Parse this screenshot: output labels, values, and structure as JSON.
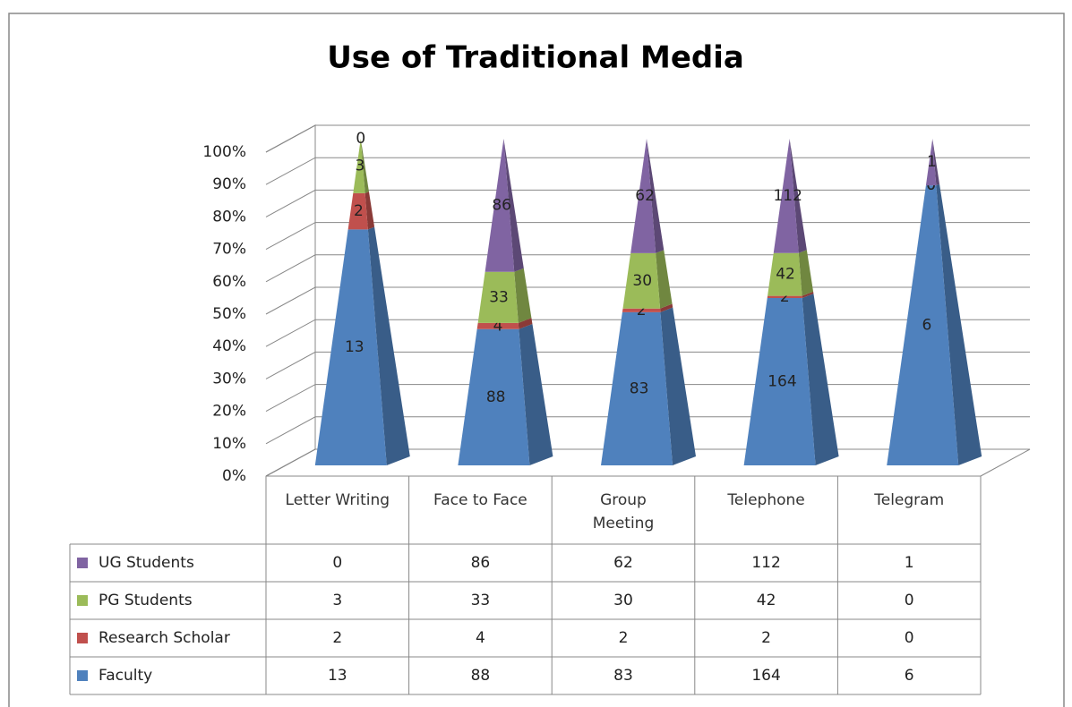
{
  "chart_data": {
    "type": "pyramid100",
    "title": "Use of Traditional Media",
    "categories": [
      "Letter Writing",
      "Face to Face",
      "Group Meeting",
      "Telephone",
      "Telegram"
    ],
    "series": [
      {
        "name": "Faculty",
        "color": "#4f81bd",
        "values": [
          13,
          88,
          83,
          164,
          6
        ]
      },
      {
        "name": "Research Scholar",
        "color": "#c0504d",
        "values": [
          2,
          4,
          2,
          2,
          0
        ]
      },
      {
        "name": "PG Students",
        "color": "#9bbb59",
        "values": [
          3,
          33,
          30,
          42,
          0
        ]
      },
      {
        "name": "UG Students",
        "color": "#8064a2",
        "values": [
          0,
          86,
          62,
          112,
          1
        ]
      }
    ],
    "ylim": [
      0,
      100
    ],
    "yticks": [
      {
        "value": 0,
        "label": "0%"
      },
      {
        "value": 10,
        "label": "10%"
      },
      {
        "value": 20,
        "label": "20%"
      },
      {
        "value": 30,
        "label": "30%"
      },
      {
        "value": 40,
        "label": "40%"
      },
      {
        "value": 50,
        "label": "50%"
      },
      {
        "value": 60,
        "label": "60%"
      },
      {
        "value": 70,
        "label": "70%"
      },
      {
        "value": 80,
        "label": "80%"
      },
      {
        "value": 90,
        "label": "90%"
      },
      {
        "value": 100,
        "label": "100%"
      }
    ],
    "grid": true,
    "data_table": true
  }
}
